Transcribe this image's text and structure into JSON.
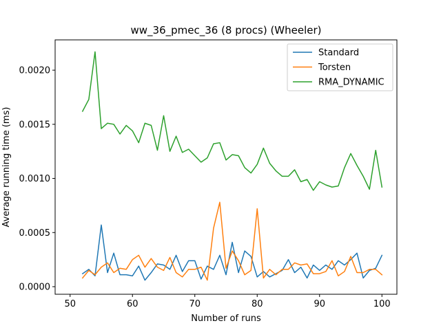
{
  "chart_data": {
    "type": "line",
    "title": "ww_36_pmec_36 (8 procs) (Wheeler)",
    "xlabel": "Number of runs",
    "ylabel": "Average running time (ms)",
    "xlim": [
      47.6,
      102.4
    ],
    "ylim": [
      -7e-05,
      0.00228
    ],
    "xticks": [
      50,
      60,
      70,
      80,
      90,
      100
    ],
    "xtick_labels": [
      "50",
      "60",
      "70",
      "80",
      "90",
      "100"
    ],
    "yticks": [
      0.0,
      0.0005,
      0.001,
      0.0015,
      0.002
    ],
    "ytick_labels": [
      "0.0000",
      "0.0005",
      "0.0010",
      "0.0015",
      "0.0020"
    ],
    "grid": false,
    "legend_position": "top-right",
    "x": [
      52,
      53,
      54,
      55,
      56,
      57,
      58,
      59,
      60,
      61,
      62,
      63,
      64,
      65,
      66,
      67,
      68,
      69,
      70,
      71,
      72,
      73,
      74,
      75,
      76,
      77,
      78,
      79,
      80,
      81,
      82,
      83,
      84,
      85,
      86,
      87,
      88,
      89,
      90,
      91,
      92,
      93,
      94,
      95,
      96,
      97,
      98,
      99,
      100
    ],
    "series": [
      {
        "name": "Standard",
        "color": "#1f77b4",
        "values": [
          0.00012,
          0.00016,
          0.0001,
          0.00057,
          0.00013,
          0.00031,
          0.00011,
          0.00011,
          0.0001,
          0.00019,
          6e-05,
          0.00013,
          0.00021,
          0.0002,
          0.00016,
          0.00029,
          0.00014,
          0.00024,
          0.00024,
          7e-05,
          0.00019,
          0.00016,
          0.00029,
          0.00011,
          0.00041,
          0.00013,
          0.00033,
          0.00028,
          9e-05,
          0.00014,
          9e-05,
          0.00012,
          0.00015,
          0.00025,
          0.00013,
          0.00018,
          8e-05,
          0.0002,
          0.00015,
          0.0002,
          0.00016,
          0.00024,
          0.0002,
          0.00025,
          0.00031,
          8e-05,
          0.00015,
          0.00017,
          0.00029
        ]
      },
      {
        "name": "Torsten",
        "color": "#ff7f0e",
        "values": [
          8e-05,
          0.00015,
          0.00011,
          0.00018,
          0.00022,
          0.00013,
          0.00017,
          0.00016,
          0.00025,
          0.00029,
          0.00018,
          0.00026,
          0.00018,
          0.00015,
          0.00027,
          0.00013,
          9e-05,
          0.00016,
          0.00016,
          0.00018,
          6e-05,
          0.00054,
          0.00078,
          0.00017,
          0.00033,
          0.00024,
          0.00011,
          0.00015,
          0.00072,
          8e-05,
          0.00016,
          0.00011,
          0.00016,
          0.00016,
          0.00022,
          0.0002,
          0.00021,
          0.00012,
          0.00012,
          0.00014,
          0.00024,
          0.0001,
          0.00014,
          0.00028,
          0.00013,
          0.00013,
          0.00016,
          0.00016,
          0.00011
        ]
      },
      {
        "name": "RMA_DYNAMIC",
        "color": "#2ca02c",
        "values": [
          0.00162,
          0.00173,
          0.00217,
          0.00146,
          0.00151,
          0.0015,
          0.00141,
          0.00149,
          0.00144,
          0.00133,
          0.00151,
          0.00149,
          0.00126,
          0.00158,
          0.00125,
          0.00139,
          0.00124,
          0.00127,
          0.00121,
          0.00115,
          0.00119,
          0.00132,
          0.00133,
          0.00117,
          0.00122,
          0.00121,
          0.0011,
          0.00105,
          0.00113,
          0.00128,
          0.00114,
          0.00107,
          0.00102,
          0.00102,
          0.00108,
          0.00097,
          0.00099,
          0.00089,
          0.00097,
          0.00094,
          0.00092,
          0.00093,
          0.0011,
          0.00123,
          0.00112,
          0.00102,
          0.0009,
          0.00126,
          0.00092
        ]
      }
    ]
  }
}
